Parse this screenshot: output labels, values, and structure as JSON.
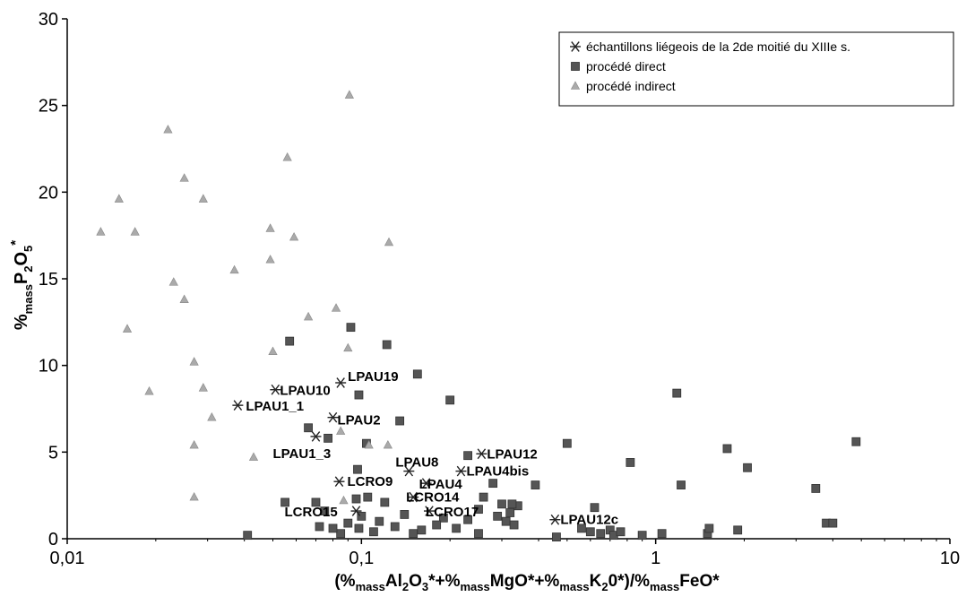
{
  "chart_data": {
    "type": "scatter",
    "x_scale": "log",
    "xlim": [
      0.01,
      10
    ],
    "ylim": [
      0,
      30
    ],
    "x_tick_labels": [
      "0,01",
      "0,1",
      "1",
      "10"
    ],
    "x_tick_values": [
      0.01,
      0.1,
      1,
      10
    ],
    "y_tick_values": [
      0,
      5,
      10,
      15,
      20,
      25,
      30
    ],
    "y_tick_labels": [
      "0",
      "5",
      "10",
      "15",
      "20",
      "25",
      "30"
    ],
    "grid": false,
    "legend_position": "top-right",
    "xlabel": "(%massAl2O3*+%massMgO*+%massK20*)/%massFeO*",
    "ylabel": "%massP2O5*",
    "series": [
      {
        "name": "échantillons liégeois de la 2de moitié du XIIIe s.",
        "marker": "star",
        "color": "#222222",
        "points": [
          {
            "x": 0.085,
            "y": 9.0,
            "label": "LPAU19"
          },
          {
            "x": 0.051,
            "y": 8.6,
            "label": "LPAU10"
          },
          {
            "x": 0.038,
            "y": 7.7,
            "label": "LPAU1_1"
          },
          {
            "x": 0.08,
            "y": 7.0,
            "label": "LPAU2"
          },
          {
            "x": 0.07,
            "y": 5.9,
            "label": "LPAU1_3"
          },
          {
            "x": 0.256,
            "y": 4.9,
            "label": "LPAU12"
          },
          {
            "x": 0.145,
            "y": 3.9,
            "label": "LPAU8"
          },
          {
            "x": 0.218,
            "y": 3.9,
            "label": "LPAU4bis"
          },
          {
            "x": 0.084,
            "y": 3.3,
            "label": "LCRO9"
          },
          {
            "x": 0.166,
            "y": 3.2,
            "label": "LPAU4"
          },
          {
            "x": 0.15,
            "y": 2.4,
            "label": "LCRO14"
          },
          {
            "x": 0.096,
            "y": 1.6,
            "label": "LCRO15"
          },
          {
            "x": 0.17,
            "y": 1.6,
            "label": "LCRO17"
          },
          {
            "x": 0.455,
            "y": 1.1,
            "label": "LPAU12c"
          }
        ]
      },
      {
        "name": "procédé direct",
        "marker": "square",
        "color": "#555555",
        "points": [
          {
            "x": 0.092,
            "y": 12.2
          },
          {
            "x": 0.122,
            "y": 11.2
          },
          {
            "x": 0.057,
            "y": 11.4
          },
          {
            "x": 0.155,
            "y": 9.5
          },
          {
            "x": 0.098,
            "y": 8.3
          },
          {
            "x": 0.2,
            "y": 8.0
          },
          {
            "x": 0.135,
            "y": 6.8
          },
          {
            "x": 0.066,
            "y": 6.4
          },
          {
            "x": 0.077,
            "y": 5.8
          },
          {
            "x": 0.104,
            "y": 5.5
          },
          {
            "x": 0.5,
            "y": 5.5
          },
          {
            "x": 1.18,
            "y": 8.4
          },
          {
            "x": 0.82,
            "y": 4.4
          },
          {
            "x": 1.75,
            "y": 5.2
          },
          {
            "x": 2.05,
            "y": 4.1
          },
          {
            "x": 4.8,
            "y": 5.6
          },
          {
            "x": 1.22,
            "y": 3.1
          },
          {
            "x": 3.5,
            "y": 2.9
          },
          {
            "x": 3.8,
            "y": 0.9
          },
          {
            "x": 4.0,
            "y": 0.9
          },
          {
            "x": 0.39,
            "y": 3.1
          },
          {
            "x": 0.28,
            "y": 3.2
          },
          {
            "x": 0.26,
            "y": 2.4
          },
          {
            "x": 0.3,
            "y": 2.0
          },
          {
            "x": 0.32,
            "y": 1.5
          },
          {
            "x": 0.34,
            "y": 1.9
          },
          {
            "x": 0.31,
            "y": 1.0
          },
          {
            "x": 0.33,
            "y": 0.8
          },
          {
            "x": 0.29,
            "y": 1.3
          },
          {
            "x": 0.25,
            "y": 1.7
          },
          {
            "x": 0.23,
            "y": 1.1
          },
          {
            "x": 0.21,
            "y": 0.6
          },
          {
            "x": 0.19,
            "y": 1.2
          },
          {
            "x": 0.18,
            "y": 0.8
          },
          {
            "x": 0.16,
            "y": 0.5
          },
          {
            "x": 0.14,
            "y": 1.4
          },
          {
            "x": 0.13,
            "y": 0.7
          },
          {
            "x": 0.12,
            "y": 2.1
          },
          {
            "x": 0.115,
            "y": 1.0
          },
          {
            "x": 0.11,
            "y": 0.4
          },
          {
            "x": 0.105,
            "y": 2.4
          },
          {
            "x": 0.1,
            "y": 1.3
          },
          {
            "x": 0.098,
            "y": 0.6
          },
          {
            "x": 0.097,
            "y": 4.0
          },
          {
            "x": 0.096,
            "y": 2.3
          },
          {
            "x": 0.09,
            "y": 0.9
          },
          {
            "x": 0.085,
            "y": 0.3
          },
          {
            "x": 0.08,
            "y": 0.6
          },
          {
            "x": 0.075,
            "y": 1.6
          },
          {
            "x": 0.072,
            "y": 0.7
          },
          {
            "x": 0.07,
            "y": 2.1
          },
          {
            "x": 0.055,
            "y": 2.1
          },
          {
            "x": 0.041,
            "y": 0.2
          },
          {
            "x": 0.6,
            "y": 0.4
          },
          {
            "x": 0.62,
            "y": 1.8
          },
          {
            "x": 0.65,
            "y": 0.3
          },
          {
            "x": 0.7,
            "y": 0.5
          },
          {
            "x": 0.72,
            "y": 0.2
          },
          {
            "x": 0.76,
            "y": 0.4
          },
          {
            "x": 0.9,
            "y": 0.2
          },
          {
            "x": 1.05,
            "y": 0.3
          },
          {
            "x": 1.5,
            "y": 0.3
          },
          {
            "x": 1.52,
            "y": 0.6
          },
          {
            "x": 1.9,
            "y": 0.5
          },
          {
            "x": 0.56,
            "y": 0.6
          },
          {
            "x": 0.46,
            "y": 0.1
          },
          {
            "x": 0.25,
            "y": 0.3
          },
          {
            "x": 0.15,
            "y": 0.3
          },
          {
            "x": 0.23,
            "y": 4.8
          },
          {
            "x": 0.325,
            "y": 2.0
          }
        ]
      },
      {
        "name": "procédé indirect",
        "marker": "triangle",
        "color": "#aaaaaa",
        "points": [
          {
            "x": 0.091,
            "y": 25.6
          },
          {
            "x": 0.022,
            "y": 23.6
          },
          {
            "x": 0.056,
            "y": 22.0
          },
          {
            "x": 0.025,
            "y": 20.8
          },
          {
            "x": 0.015,
            "y": 19.6
          },
          {
            "x": 0.029,
            "y": 19.6
          },
          {
            "x": 0.049,
            "y": 17.9
          },
          {
            "x": 0.059,
            "y": 17.4
          },
          {
            "x": 0.013,
            "y": 17.7
          },
          {
            "x": 0.017,
            "y": 17.7
          },
          {
            "x": 0.124,
            "y": 17.1
          },
          {
            "x": 0.049,
            "y": 16.1
          },
          {
            "x": 0.037,
            "y": 15.5
          },
          {
            "x": 0.023,
            "y": 14.8
          },
          {
            "x": 0.025,
            "y": 13.8
          },
          {
            "x": 0.082,
            "y": 13.3
          },
          {
            "x": 0.066,
            "y": 12.8
          },
          {
            "x": 0.016,
            "y": 12.1
          },
          {
            "x": 0.09,
            "y": 11.0
          },
          {
            "x": 0.05,
            "y": 10.8
          },
          {
            "x": 0.027,
            "y": 10.2
          },
          {
            "x": 0.029,
            "y": 8.7
          },
          {
            "x": 0.019,
            "y": 8.5
          },
          {
            "x": 0.031,
            "y": 7.0
          },
          {
            "x": 0.085,
            "y": 6.2
          },
          {
            "x": 0.027,
            "y": 5.4
          },
          {
            "x": 0.123,
            "y": 5.4
          },
          {
            "x": 0.106,
            "y": 5.4
          },
          {
            "x": 0.043,
            "y": 4.7
          },
          {
            "x": 0.027,
            "y": 2.4
          },
          {
            "x": 0.087,
            "y": 2.2
          }
        ]
      }
    ]
  }
}
